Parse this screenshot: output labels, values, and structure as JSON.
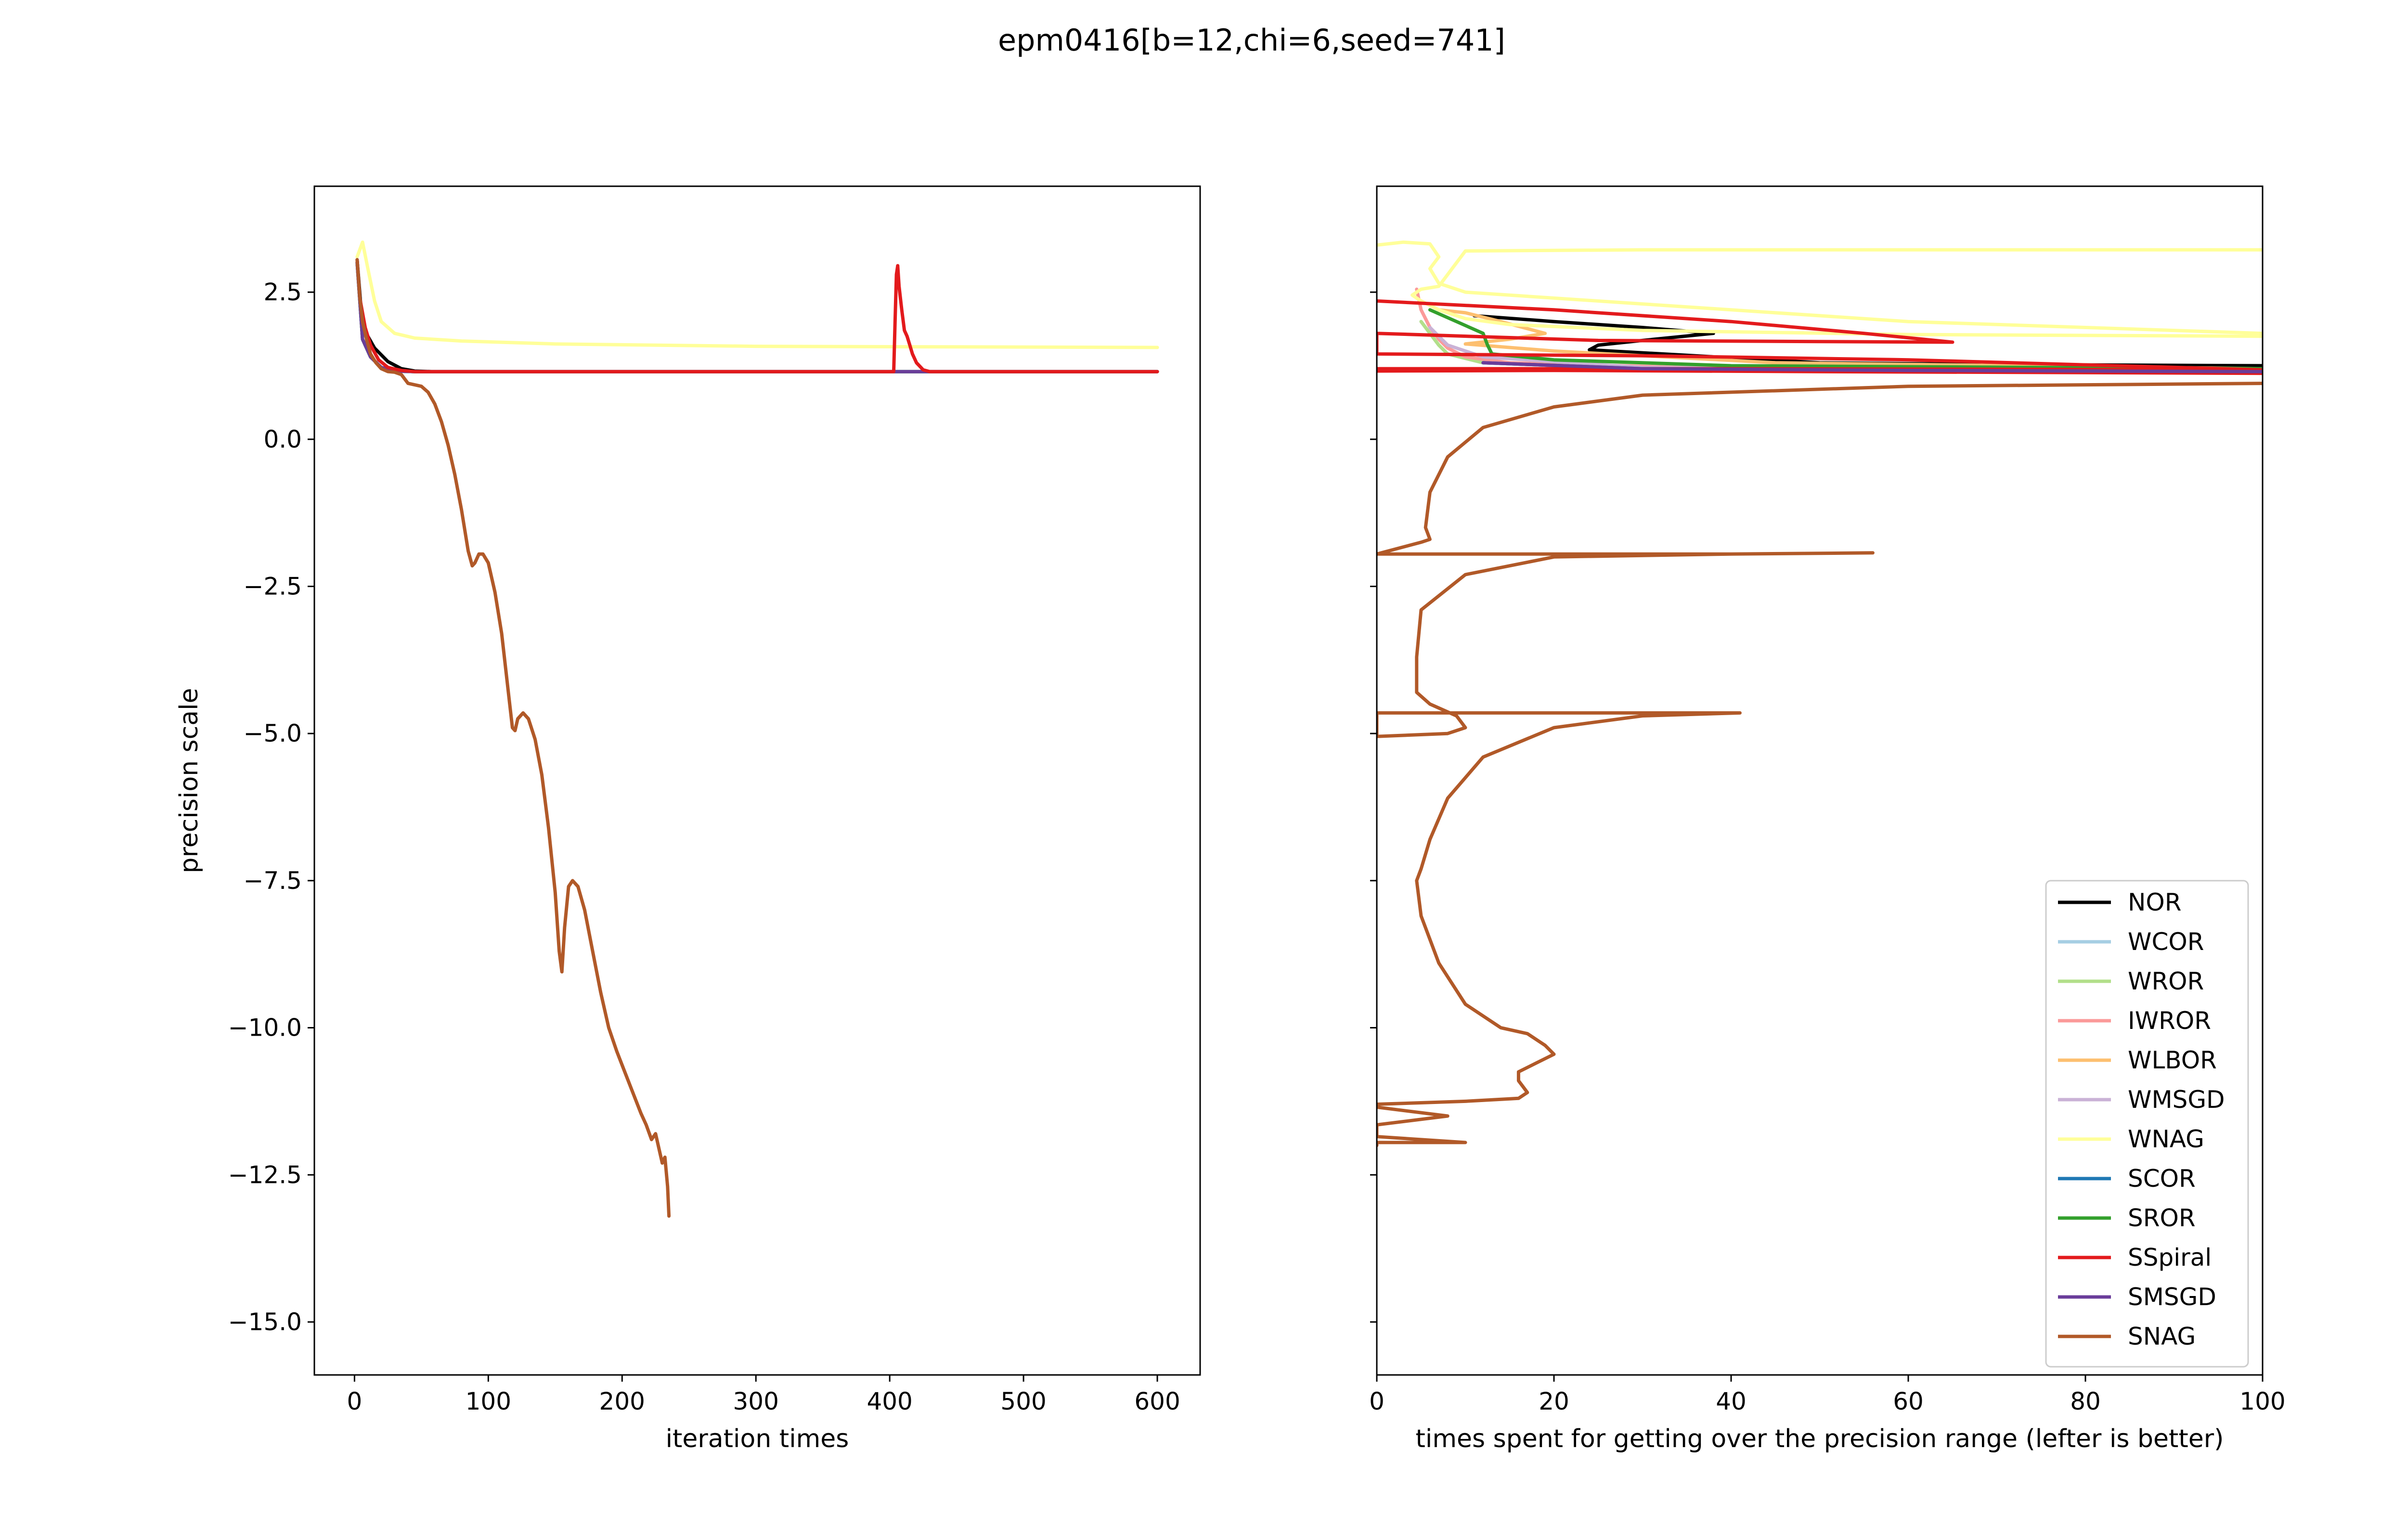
{
  "figure": {
    "title": "epm0416[b=12,chi=6,seed=741]"
  },
  "chart_data": [
    {
      "type": "line",
      "title": "",
      "xlabel": "iteration times",
      "ylabel": "precision scale",
      "xlim": [
        -30,
        632
      ],
      "ylim": [
        -15.9,
        4.3
      ],
      "xticks": [
        0,
        100,
        200,
        300,
        400,
        500,
        600
      ],
      "yticks": [
        2.5,
        0.0,
        -2.5,
        -5.0,
        -7.5,
        -10.0,
        -12.5,
        -15.0
      ],
      "xtick_labels": [
        "0",
        "100",
        "200",
        "300",
        "400",
        "500",
        "600"
      ],
      "ytick_labels": [
        "2.5",
        "0.0",
        "−2.5",
        "−5.0",
        "−7.5",
        "−10.0",
        "−12.5",
        "−15.0"
      ],
      "grid": false,
      "series": [
        {
          "name": "WNAG",
          "color": "#ffff99",
          "x": [
            2,
            6,
            10,
            15,
            20,
            30,
            45,
            80,
            150,
            300,
            450,
            600
          ],
          "y": [
            3.1,
            3.35,
            2.9,
            2.35,
            2.0,
            1.8,
            1.72,
            1.67,
            1.62,
            1.58,
            1.57,
            1.56
          ]
        },
        {
          "name": "NOR",
          "color": "#000000",
          "x": [
            2,
            6,
            10,
            15,
            25,
            35,
            45,
            60,
            600
          ],
          "y": [
            3.05,
            1.9,
            1.75,
            1.55,
            1.32,
            1.2,
            1.16,
            1.15,
            1.15
          ]
        },
        {
          "name": "WCOR",
          "color": "#a6cee3",
          "x": [
            2,
            6,
            12,
            20,
            30,
            45,
            600
          ],
          "y": [
            3.0,
            1.7,
            1.4,
            1.22,
            1.16,
            1.15,
            1.15
          ]
        },
        {
          "name": "WROR",
          "color": "#b2df8a",
          "x": [
            2,
            6,
            12,
            20,
            30,
            45,
            600
          ],
          "y": [
            3.0,
            1.7,
            1.4,
            1.22,
            1.16,
            1.15,
            1.15
          ]
        },
        {
          "name": "IWROR",
          "color": "#fb9a99",
          "x": [
            2,
            6,
            12,
            20,
            30,
            45,
            600
          ],
          "y": [
            3.0,
            1.7,
            1.4,
            1.22,
            1.16,
            1.15,
            1.15
          ]
        },
        {
          "name": "WLBOR",
          "color": "#fdbf6f",
          "x": [
            2,
            6,
            12,
            20,
            30,
            45,
            600
          ],
          "y": [
            3.0,
            1.7,
            1.4,
            1.22,
            1.16,
            1.15,
            1.15
          ]
        },
        {
          "name": "WMSGD",
          "color": "#cab2d6",
          "x": [
            2,
            6,
            12,
            20,
            30,
            45,
            600
          ],
          "y": [
            3.0,
            1.7,
            1.4,
            1.22,
            1.16,
            1.15,
            1.15
          ]
        },
        {
          "name": "SCOR",
          "color": "#1f78b4",
          "x": [
            2,
            6,
            12,
            20,
            30,
            45,
            600
          ],
          "y": [
            3.0,
            1.7,
            1.4,
            1.22,
            1.16,
            1.15,
            1.15
          ]
        },
        {
          "name": "SROR",
          "color": "#33a02c",
          "x": [
            2,
            6,
            12,
            20,
            30,
            45,
            400,
            404,
            408,
            412,
            416,
            420,
            424,
            600
          ],
          "y": [
            3.0,
            1.7,
            1.4,
            1.22,
            1.16,
            1.15,
            1.15,
            1.15,
            1.15,
            1.15,
            1.15,
            1.15,
            1.15,
            1.15
          ]
        },
        {
          "name": "SMSGD",
          "color": "#6a3d9a",
          "x": [
            2,
            6,
            12,
            20,
            30,
            45,
            600
          ],
          "y": [
            3.0,
            1.7,
            1.4,
            1.22,
            1.16,
            1.15,
            1.15
          ]
        },
        {
          "name": "SSpiral",
          "color": "#e31a1c",
          "x": [
            2,
            4,
            8,
            12,
            18,
            25,
            35,
            45,
            403,
            404,
            405,
            406,
            407,
            409,
            411,
            413,
            415,
            417,
            420,
            425,
            430,
            600
          ],
          "y": [
            3.05,
            2.4,
            1.9,
            1.6,
            1.35,
            1.22,
            1.17,
            1.15,
            1.15,
            2.0,
            2.8,
            2.95,
            2.6,
            2.2,
            1.85,
            1.75,
            1.6,
            1.45,
            1.3,
            1.18,
            1.15,
            1.15
          ]
        },
        {
          "name": "SNAG",
          "color": "#b15928",
          "x": [
            2,
            4,
            6,
            9,
            12,
            16,
            20,
            25,
            30,
            35,
            40,
            50,
            55,
            60,
            65,
            70,
            75,
            80,
            85,
            88,
            90,
            93,
            96,
            100,
            105,
            110,
            115,
            118,
            120,
            122,
            126,
            130,
            135,
            140,
            145,
            150,
            153,
            155,
            157,
            160,
            163,
            167,
            172,
            178,
            184,
            190,
            196,
            202,
            208,
            214,
            218,
            222,
            225,
            228,
            230,
            232,
            234,
            235
          ],
          "y": [
            3.05,
            2.4,
            2.0,
            1.7,
            1.45,
            1.3,
            1.2,
            1.15,
            1.14,
            1.1,
            0.95,
            0.9,
            0.8,
            0.6,
            0.3,
            -0.1,
            -0.6,
            -1.2,
            -1.9,
            -2.15,
            -2.1,
            -1.95,
            -1.95,
            -2.1,
            -2.6,
            -3.3,
            -4.3,
            -4.9,
            -4.95,
            -4.75,
            -4.65,
            -4.75,
            -5.1,
            -5.7,
            -6.6,
            -7.7,
            -8.7,
            -9.05,
            -8.3,
            -7.6,
            -7.5,
            -7.6,
            -8.0,
            -8.7,
            -9.4,
            -10.0,
            -10.4,
            -10.75,
            -11.1,
            -11.45,
            -11.65,
            -11.9,
            -11.8,
            -12.1,
            -12.3,
            -12.2,
            -12.7,
            -13.2
          ]
        }
      ]
    },
    {
      "type": "line",
      "title": "",
      "xlabel": "times spent for getting over the precision range (lefter is better)",
      "ylabel": "",
      "xlim": [
        0,
        100
      ],
      "ylim": [
        -15.9,
        4.3
      ],
      "xticks": [
        0,
        20,
        40,
        60,
        80,
        100
      ],
      "xtick_labels": [
        "0",
        "20",
        "40",
        "60",
        "80",
        "100"
      ],
      "grid": false,
      "legend_position": "lower right",
      "series": [
        {
          "name": "NOR",
          "color": "#000000",
          "x": [
            11,
            20,
            30,
            38,
            30,
            25,
            24,
            50,
            70,
            100
          ],
          "y": [
            2.1,
            2.0,
            1.9,
            1.8,
            1.68,
            1.6,
            1.52,
            1.3,
            1.27,
            1.25
          ]
        },
        {
          "name": "WCOR",
          "color": "#a6cee3",
          "x": [
            5,
            6,
            7,
            8,
            12,
            30,
            100
          ],
          "y": [
            2.0,
            1.8,
            1.6,
            1.45,
            1.3,
            1.2,
            1.18
          ]
        },
        {
          "name": "WROR",
          "color": "#b2df8a",
          "x": [
            5,
            6,
            7,
            8,
            12,
            30,
            100
          ],
          "y": [
            2.0,
            1.8,
            1.6,
            1.45,
            1.3,
            1.2,
            1.18
          ]
        },
        {
          "name": "IWROR",
          "color": "#fb9a99",
          "x": [
            4.5,
            5,
            6,
            7,
            8,
            10,
            15,
            40,
            100
          ],
          "y": [
            2.55,
            2.2,
            1.9,
            1.7,
            1.55,
            1.4,
            1.3,
            1.2,
            1.17
          ]
        },
        {
          "name": "WLBOR",
          "color": "#fdbf6f",
          "x": [
            7,
            10,
            14,
            19,
            15,
            10,
            20,
            45,
            100
          ],
          "y": [
            2.2,
            2.15,
            2.0,
            1.8,
            1.7,
            1.62,
            1.5,
            1.3,
            1.2
          ]
        },
        {
          "name": "WMSGD",
          "color": "#cab2d6",
          "x": [
            6,
            8,
            12,
            30,
            100
          ],
          "y": [
            1.9,
            1.6,
            1.4,
            1.22,
            1.18
          ]
        },
        {
          "name": "WNAG",
          "color": "#ffff99",
          "x": [
            0,
            3,
            6,
            7,
            6,
            7,
            10,
            30,
            60,
            100,
            100,
            60,
            30,
            15,
            10,
            7,
            5,
            4,
            5,
            7,
            10,
            30,
            70,
            100
          ],
          "y": [
            3.3,
            3.35,
            3.32,
            3.1,
            2.9,
            2.65,
            2.5,
            2.3,
            2.0,
            1.8,
            1.75,
            1.78,
            1.85,
            1.95,
            2.05,
            2.2,
            2.35,
            2.45,
            2.55,
            2.6,
            3.2,
            3.22,
            3.22,
            3.22
          ]
        },
        {
          "name": "SCOR",
          "color": "#1f78b4",
          "x": [
            12,
            30,
            60,
            100
          ],
          "y": [
            1.3,
            1.2,
            1.17,
            1.15
          ]
        },
        {
          "name": "SROR",
          "color": "#33a02c",
          "x": [
            6,
            9,
            12,
            12.5,
            13,
            20,
            40,
            100
          ],
          "y": [
            2.2,
            2.0,
            1.8,
            1.6,
            1.45,
            1.35,
            1.25,
            1.2
          ]
        },
        {
          "name": "SSpiral",
          "color": "#e31a1c",
          "x": [
            0,
            20,
            40,
            55,
            65,
            50,
            25,
            0,
            0,
            30,
            60,
            100,
            100,
            50,
            20,
            0,
            0,
            40,
            100
          ],
          "y": [
            2.35,
            2.2,
            2.0,
            1.8,
            1.65,
            1.66,
            1.68,
            1.8,
            1.45,
            1.42,
            1.35,
            1.18,
            1.12,
            1.15,
            1.17,
            1.16,
            1.2,
            1.2,
            1.18
          ]
        },
        {
          "name": "SMSGD",
          "color": "#6a3d9a",
          "x": [
            12,
            30,
            60,
            100
          ],
          "y": [
            1.3,
            1.2,
            1.17,
            1.15
          ]
        },
        {
          "name": "SNAG",
          "color": "#b15928",
          "x": [
            100,
            60,
            30,
            20,
            12,
            8,
            6,
            5.5,
            6,
            5,
            0,
            20,
            40,
            56,
            40,
            20,
            10,
            5,
            4.5,
            4.5,
            6,
            9,
            10,
            8,
            0,
            0,
            10,
            20,
            30,
            41,
            30,
            20,
            12,
            8,
            6,
            5,
            4.5,
            5,
            7,
            10,
            14,
            17,
            19,
            20,
            18,
            16,
            16,
            17,
            16,
            10,
            0,
            0,
            8,
            0,
            0,
            10,
            0,
            0
          ],
          "y": [
            0.95,
            0.9,
            0.75,
            0.55,
            0.2,
            -0.3,
            -0.9,
            -1.5,
            -1.7,
            -1.75,
            -1.95,
            -1.95,
            -1.95,
            -1.93,
            -1.95,
            -2.0,
            -2.3,
            -2.9,
            -3.7,
            -4.3,
            -4.5,
            -4.7,
            -4.9,
            -5.0,
            -5.05,
            -4.65,
            -4.65,
            -4.65,
            -4.65,
            -4.65,
            -4.7,
            -4.9,
            -5.4,
            -6.1,
            -6.8,
            -7.3,
            -7.5,
            -8.1,
            -8.9,
            -9.6,
            -10.0,
            -10.1,
            -10.3,
            -10.45,
            -10.6,
            -10.75,
            -10.9,
            -11.1,
            -11.2,
            -11.25,
            -11.3,
            -11.35,
            -11.5,
            -11.65,
            -11.85,
            -11.95,
            -11.95,
            -12.0
          ]
        }
      ]
    }
  ]
}
